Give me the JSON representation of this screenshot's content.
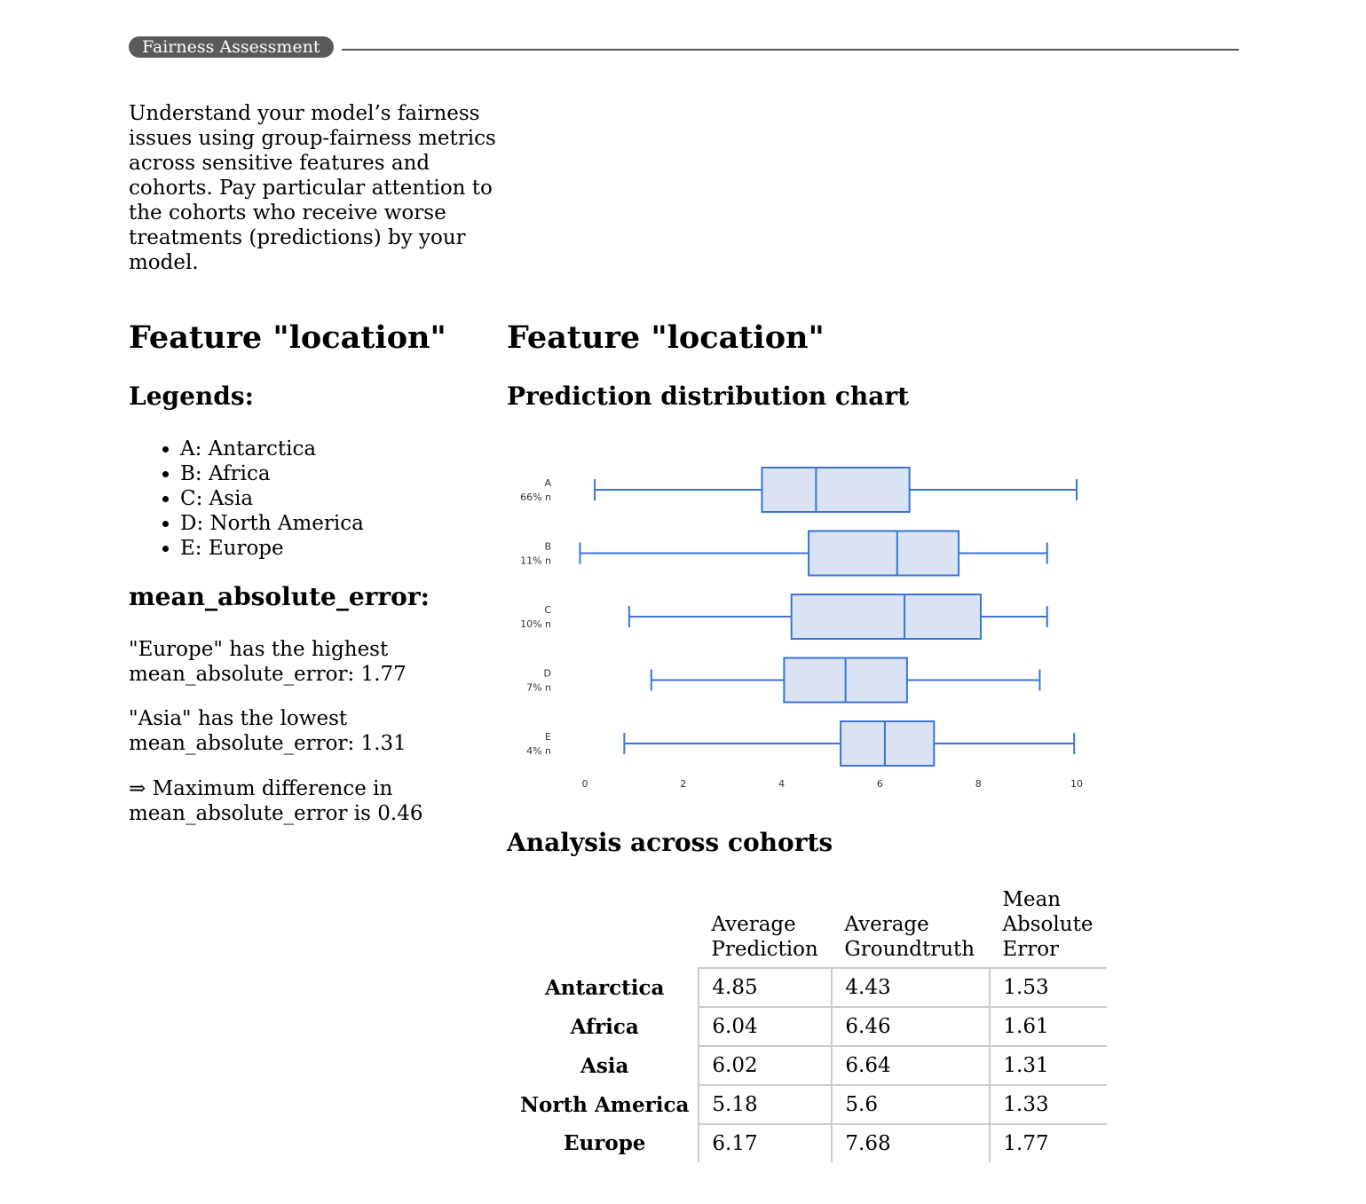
{
  "header": {
    "badge": "Fairness Assessment"
  },
  "intro": "Understand your model’s fairness issues using group-fairness metrics across sensitive features and cohorts. Pay particular attention to the cohorts who receive worse treatments (predictions) by your model.",
  "left": {
    "title": "Feature \"location\"",
    "legends_heading": "Legends:",
    "legends": [
      "A: Antarctica",
      "B: Africa",
      "C: Asia",
      "D: North America",
      "E: Europe"
    ],
    "metric_heading": "mean_absolute_error:",
    "highest": "\"Europe\" has the highest mean_absolute_error: 1.77",
    "lowest": "\"Asia\" has the lowest mean_absolute_error: 1.31",
    "difference": "⇒ Maximum difference in mean_absolute_error is 0.46"
  },
  "right": {
    "title": "Feature \"location\"",
    "chart_heading": "Prediction distribution chart",
    "table_heading": "Analysis across cohorts"
  },
  "chart_data": {
    "type": "boxplot",
    "orientation": "horizontal",
    "color": "#3b73d6",
    "fill": "#dae3f3",
    "xlim": [
      0,
      10
    ],
    "xticks": [
      "0",
      "2",
      "4",
      "6",
      "8",
      "10"
    ],
    "categories": [
      "A",
      "B",
      "C",
      "D",
      "E"
    ],
    "share_labels": [
      "66% n",
      "11% n",
      "10% n",
      "7% n",
      "4% n"
    ],
    "boxes": [
      {
        "min": 0.2,
        "q1": 3.6,
        "median": 4.7,
        "q3": 6.6,
        "max": 10.0
      },
      {
        "min": -0.1,
        "q1": 4.55,
        "median": 6.35,
        "q3": 7.6,
        "max": 9.4
      },
      {
        "min": 0.9,
        "q1": 4.2,
        "median": 6.5,
        "q3": 8.05,
        "max": 9.4
      },
      {
        "min": 1.35,
        "q1": 4.05,
        "median": 5.3,
        "q3": 6.55,
        "max": 9.25
      },
      {
        "min": 0.8,
        "q1": 5.2,
        "median": 6.1,
        "q3": 7.1,
        "max": 9.95
      }
    ]
  },
  "table": {
    "columns": [
      "Average Prediction",
      "Average Groundtruth",
      "Mean Absolute Error"
    ],
    "rows": [
      {
        "label": "Antarctica",
        "values": [
          "4.85",
          "4.43",
          "1.53"
        ]
      },
      {
        "label": "Africa",
        "values": [
          "6.04",
          "6.46",
          "1.61"
        ]
      },
      {
        "label": "Asia",
        "values": [
          "6.02",
          "6.64",
          "1.31"
        ]
      },
      {
        "label": "North America",
        "values": [
          "5.18",
          "5.6",
          "1.33"
        ]
      },
      {
        "label": "Europe",
        "values": [
          "6.17",
          "7.68",
          "1.77"
        ]
      }
    ]
  }
}
